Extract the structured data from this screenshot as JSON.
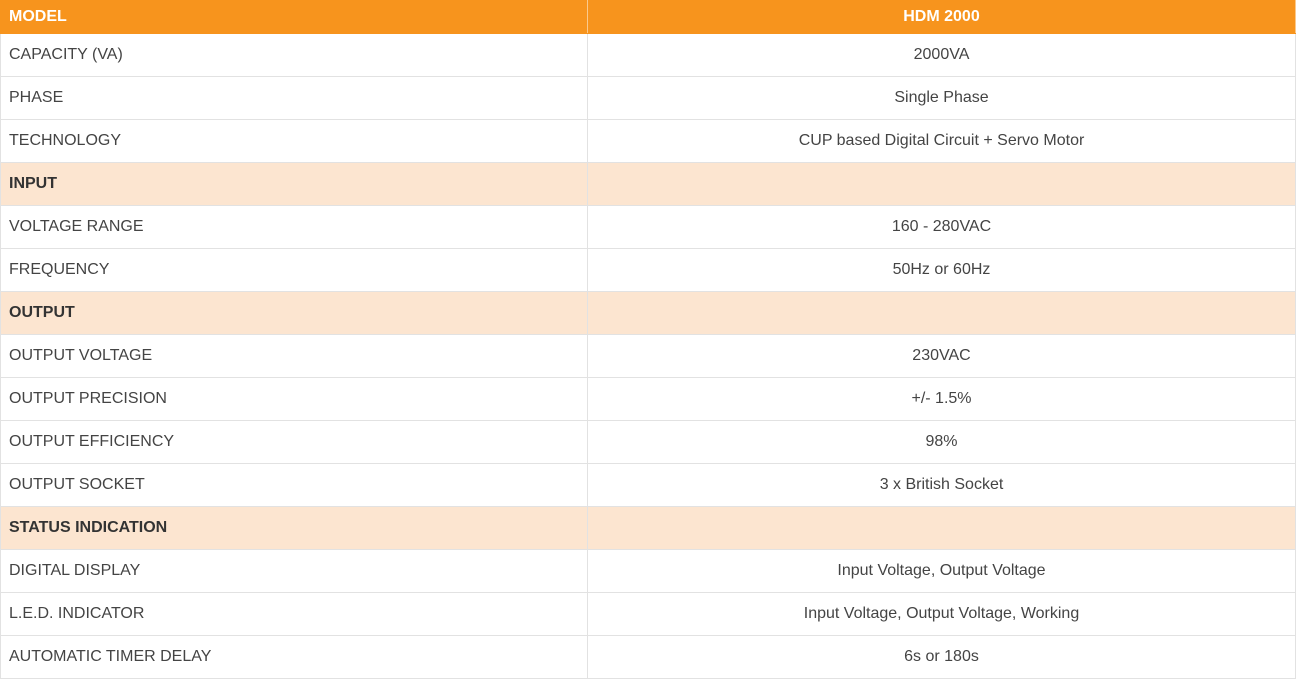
{
  "table": {
    "header": [
      "MODEL",
      "HDM 2000"
    ],
    "rows": [
      {
        "label": "CAPACITY (VA)",
        "value": "2000VA"
      },
      {
        "label": "PHASE",
        "value": "Single Phase"
      },
      {
        "label": "TECHNOLOGY",
        "value": "CUP based Digital Circuit + Servo Motor"
      },
      {
        "section": "INPUT"
      },
      {
        "label": "VOLTAGE RANGE",
        "value": "160 - 280VAC"
      },
      {
        "label": "FREQUENCY",
        "value": "50Hz or 60Hz"
      },
      {
        "section": "OUTPUT"
      },
      {
        "label": "OUTPUT VOLTAGE",
        "value": "230VAC"
      },
      {
        "label": "OUTPUT PRECISION",
        "value": "+/- 1.5%"
      },
      {
        "label": "OUTPUT EFFICIENCY",
        "value": "98%"
      },
      {
        "label": "OUTPUT SOCKET",
        "value": "3 x British Socket"
      },
      {
        "section": "STATUS INDICATION"
      },
      {
        "label": "DIGITAL DISPLAY",
        "value": "Input Voltage, Output Voltage"
      },
      {
        "label": "L.E.D. INDICATOR",
        "value": "Input Voltage, Output Voltage, Working"
      },
      {
        "label": "AUTOMATIC TIMER DELAY",
        "value": "6s or 180s"
      }
    ]
  }
}
